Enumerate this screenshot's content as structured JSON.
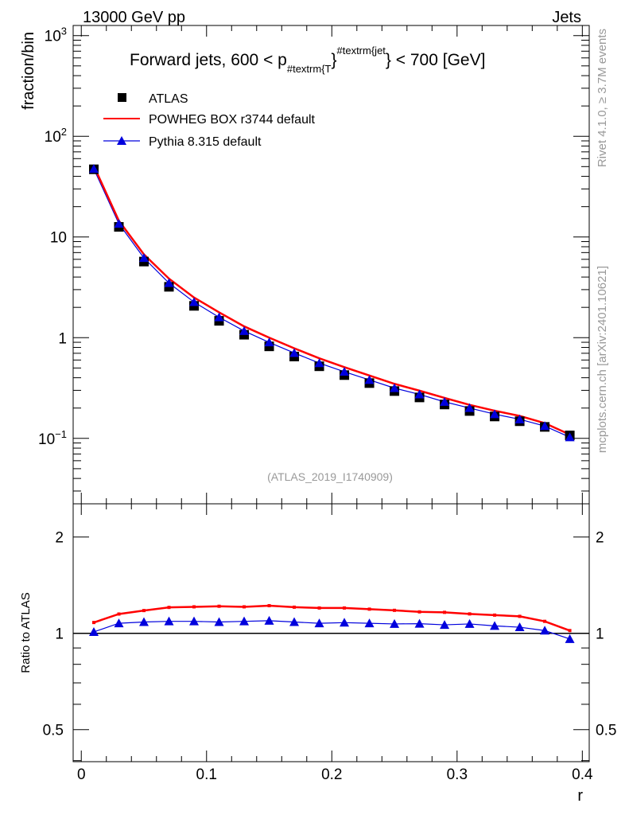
{
  "header": {
    "left": "13000 GeV pp",
    "right": "Jets"
  },
  "side_text": {
    "top": "Rivet 4.1.0, ≥ 3.7M events",
    "bottom": "mcplots.cern.ch [arXiv:2401.10621]"
  },
  "watermark": "(ATLAS_2019_I1740909)",
  "title": {
    "main": "Forward jets, 600 < p",
    "sub": "#textrm{T",
    "mid": "}",
    "sup": "#textrm{jet",
    "end": "} < 700 [GeV]"
  },
  "colors": {
    "atlas": "#000000",
    "powheg": "#ff0000",
    "pythia": "#0000dd"
  },
  "chart_data": [
    {
      "type": "scatter",
      "panel": "main",
      "ylabel": "fraction/bin",
      "yscale": "log",
      "ylim": [
        0.0224,
        1260
      ],
      "xlim": [
        -0.0065,
        0.4055
      ],
      "ytick_labels": [
        "10^-1",
        "1",
        "10",
        "10^2",
        "10^3"
      ],
      "ytick_values": [
        0.1,
        1,
        10,
        100,
        1000
      ],
      "legend": {
        "placement": "top-left",
        "entries": [
          "ATLAS",
          "POWHEG BOX r3744 default",
          "Pythia 8.315 default"
        ]
      },
      "x": [
        0.01,
        0.03,
        0.05,
        0.07,
        0.09,
        0.11,
        0.13,
        0.15,
        0.17,
        0.19,
        0.21,
        0.23,
        0.25,
        0.27,
        0.29,
        0.31,
        0.33,
        0.35,
        0.37,
        0.39
      ],
      "series": [
        {
          "name": "ATLAS",
          "values": [
            47,
            12.6,
            5.7,
            3.2,
            2.07,
            1.47,
            1.07,
            0.82,
            0.65,
            0.52,
            0.425,
            0.354,
            0.295,
            0.255,
            0.217,
            0.187,
            0.165,
            0.148,
            0.13,
            0.107
          ]
        }
      ]
    },
    {
      "type": "line",
      "panel": "ratio",
      "ylabel": "Ratio to ATLAS",
      "xlabel": "r",
      "yscale": "log",
      "ylim": [
        0.397,
        2.54
      ],
      "ytick_labels": [
        "0.5",
        "1",
        "2"
      ],
      "ytick_values": [
        0.5,
        1,
        2
      ],
      "xtick_labels": [
        "0",
        "0.1",
        "0.2",
        "0.3",
        "0.4"
      ],
      "xtick_values": [
        0,
        0.1,
        0.2,
        0.3,
        0.4
      ],
      "x": [
        0.01,
        0.03,
        0.05,
        0.07,
        0.09,
        0.11,
        0.13,
        0.15,
        0.17,
        0.19,
        0.21,
        0.23,
        0.25,
        0.27,
        0.29,
        0.31,
        0.33,
        0.35,
        0.37,
        0.39
      ],
      "series": [
        {
          "name": "POWHEG BOX r3744 default",
          "values": [
            1.081,
            1.149,
            1.178,
            1.205,
            1.21,
            1.215,
            1.21,
            1.22,
            1.207,
            1.2,
            1.2,
            1.19,
            1.18,
            1.167,
            1.163,
            1.15,
            1.14,
            1.13,
            1.09,
            1.02
          ]
        },
        {
          "name": "Pythia 8.315 default",
          "values": [
            1.01,
            1.075,
            1.085,
            1.09,
            1.09,
            1.085,
            1.09,
            1.095,
            1.085,
            1.075,
            1.08,
            1.075,
            1.07,
            1.072,
            1.063,
            1.07,
            1.055,
            1.045,
            1.02,
            0.96
          ]
        }
      ]
    }
  ]
}
